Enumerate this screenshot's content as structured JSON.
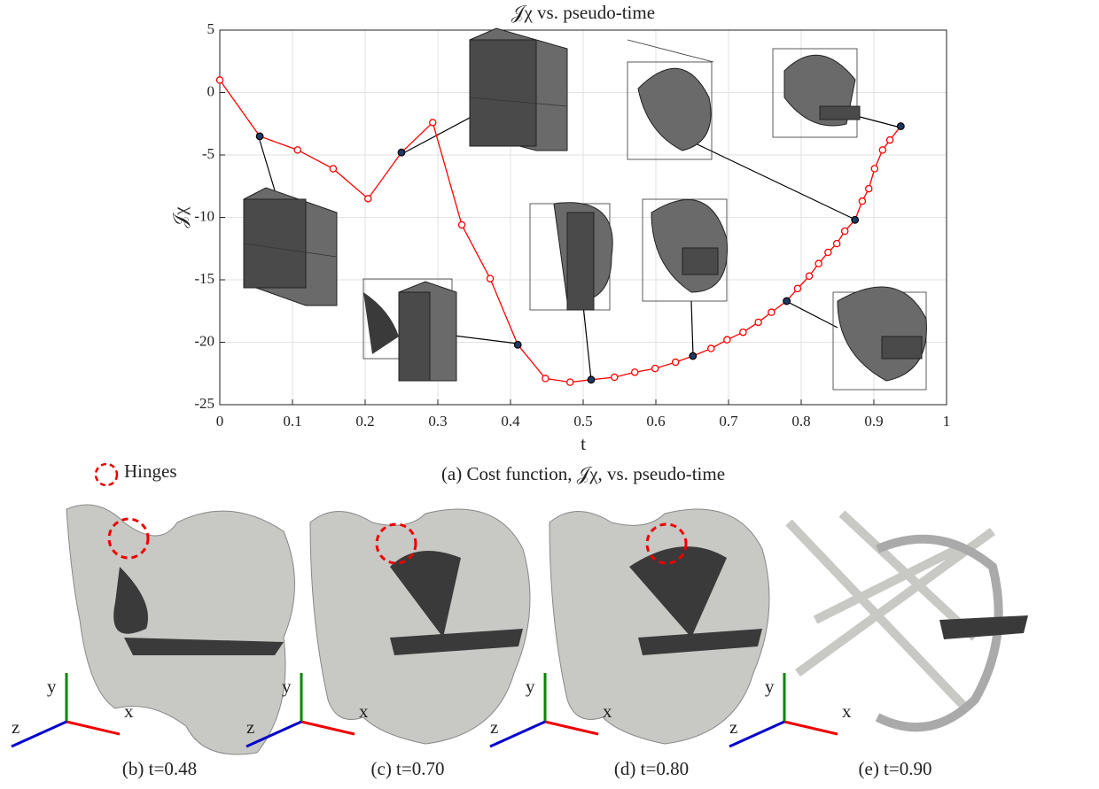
{
  "chart_data": {
    "type": "line",
    "title": "𝒥χ vs. pseudo-time",
    "x_label": "t",
    "y_label": "𝒥χ",
    "xlim": [
      0,
      1
    ],
    "xticks": [
      0,
      0.1,
      0.2,
      0.3,
      0.4,
      0.5,
      0.6,
      0.7,
      0.8,
      0.9,
      1
    ],
    "ylim": [
      -25,
      5
    ],
    "yticks": [
      5,
      0,
      -5,
      -10,
      -15,
      -20,
      -25
    ],
    "grid": true,
    "series": [
      {
        "color": "#ff0000",
        "marker": "open-circle",
        "line": true,
        "x": [
          0,
          0.055,
          0.107,
          0.156,
          0.204,
          0.25,
          0.293,
          0.333,
          0.372,
          0.41,
          0.448,
          0.482,
          0.511,
          0.543,
          0.571,
          0.599,
          0.627,
          0.651,
          0.676,
          0.698,
          0.72,
          0.741,
          0.759,
          0.78,
          0.795,
          0.811,
          0.824,
          0.837,
          0.849,
          0.86,
          0.874,
          0.884,
          0.893,
          0.901,
          0.912,
          0.922,
          0.937
        ],
        "values": [
          1.0,
          -3.5,
          -4.6,
          -6.1,
          -8.5,
          -4.8,
          -2.4,
          -10.6,
          -14.9,
          -20.2,
          -22.9,
          -23.2,
          -23.0,
          -22.8,
          -22.4,
          -22.1,
          -21.6,
          -21.1,
          -20.5,
          -19.8,
          -19.2,
          -18.4,
          -17.6,
          -16.7,
          -15.7,
          -14.7,
          -13.7,
          -12.8,
          -12.1,
          -11.1,
          -10.2,
          -8.7,
          -7.7,
          -6.1,
          -4.6,
          -3.8,
          -2.7
        ]
      },
      {
        "color": "#1b3a66",
        "marker": "filled-circle",
        "line": false,
        "x": [
          0.055,
          0.25,
          0.41,
          0.511,
          0.651,
          0.78,
          0.874,
          0.937
        ],
        "values": [
          -3.5,
          -4.8,
          -20.2,
          -23.0,
          -21.1,
          -16.7,
          -10.2,
          -2.7
        ]
      }
    ]
  },
  "figure_caption": "(a) Cost function, 𝒥χ, vs. pseudo-time",
  "hinges_label": "Hinges",
  "triad_labels": {
    "x": "x",
    "y": "y",
    "z": "z"
  },
  "panel_captions": [
    "(b) t=0.48",
    "(c) t=0.70",
    "(d) t=0.80",
    "(e) t=0.90"
  ]
}
